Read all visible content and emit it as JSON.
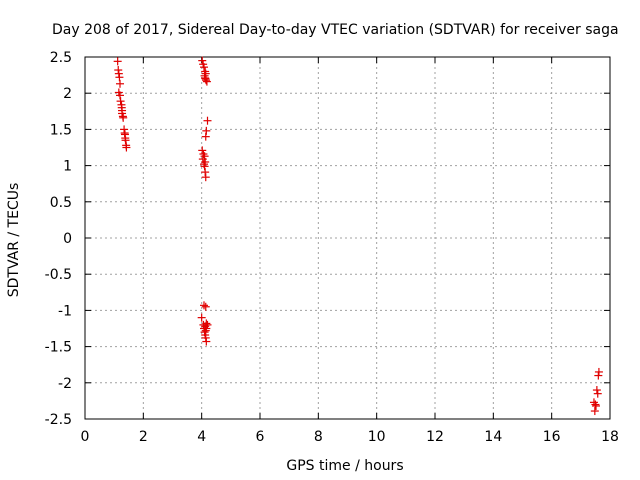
{
  "chart_data": {
    "type": "scatter",
    "title": "Day 208 of 2017, Sidereal Day-to-day VTEC variation (SDTVAR) for receiver saga",
    "xlabel": "GPS time / hours",
    "ylabel": "SDTVAR / TECUs",
    "xlim": [
      0,
      18
    ],
    "ylim": [
      -2.5,
      2.5
    ],
    "xticks": [
      "0",
      "2",
      "4",
      "6",
      "8",
      "10",
      "12",
      "14",
      "16",
      "18"
    ],
    "yticks": [
      "-2.5",
      "-2",
      "-1.5",
      "-1",
      "-0.5",
      "0",
      "0.5",
      "1",
      "1.5",
      "2",
      "2.5"
    ],
    "grid": true,
    "marker": "+",
    "marker_color": "#e00000",
    "series": [
      {
        "name": "SDTVAR",
        "points": [
          [
            1.12,
            2.44
          ],
          [
            1.14,
            2.32
          ],
          [
            1.16,
            2.27
          ],
          [
            1.18,
            2.22
          ],
          [
            1.2,
            2.13
          ],
          [
            1.16,
            2.01
          ],
          [
            1.2,
            1.97
          ],
          [
            1.22,
            1.89
          ],
          [
            1.25,
            1.84
          ],
          [
            1.26,
            1.8
          ],
          [
            1.27,
            1.76
          ],
          [
            1.27,
            1.72
          ],
          [
            1.3,
            1.68
          ],
          [
            1.31,
            1.66
          ],
          [
            1.34,
            1.5
          ],
          [
            1.36,
            1.45
          ],
          [
            1.37,
            1.43
          ],
          [
            1.38,
            1.38
          ],
          [
            1.39,
            1.35
          ],
          [
            1.41,
            1.28
          ],
          [
            1.42,
            1.25
          ],
          [
            4.02,
            2.45
          ],
          [
            4.05,
            2.4
          ],
          [
            4.08,
            2.36
          ],
          [
            4.12,
            2.3
          ],
          [
            4.14,
            2.27
          ],
          [
            4.1,
            2.24
          ],
          [
            4.12,
            2.21
          ],
          [
            4.15,
            2.18
          ],
          [
            4.18,
            2.16
          ],
          [
            4.13,
            2.2
          ],
          [
            4.2,
            1.62
          ],
          [
            4.16,
            1.48
          ],
          [
            4.14,
            1.4
          ],
          [
            4.02,
            1.21
          ],
          [
            4.06,
            1.16
          ],
          [
            4.1,
            1.13
          ],
          [
            4.04,
            1.09
          ],
          [
            4.12,
            1.05
          ],
          [
            4.08,
            1.02
          ],
          [
            4.1,
            0.99
          ],
          [
            4.12,
            0.91
          ],
          [
            4.14,
            0.84
          ],
          [
            4.08,
            -0.93
          ],
          [
            4.14,
            -0.95
          ],
          [
            4.0,
            -1.1
          ],
          [
            4.16,
            -1.18
          ],
          [
            4.06,
            -1.2
          ],
          [
            4.2,
            -1.2
          ],
          [
            4.12,
            -1.22
          ],
          [
            4.08,
            -1.25
          ],
          [
            4.16,
            -1.25
          ],
          [
            4.14,
            -1.28
          ],
          [
            4.1,
            -1.3
          ],
          [
            4.12,
            -1.34
          ],
          [
            4.14,
            -1.38
          ],
          [
            4.16,
            -1.43
          ],
          [
            17.62,
            -1.85
          ],
          [
            17.6,
            -1.9
          ],
          [
            17.55,
            -2.1
          ],
          [
            17.58,
            -2.15
          ],
          [
            17.45,
            -2.27
          ],
          [
            17.5,
            -2.3
          ],
          [
            17.52,
            -2.32
          ],
          [
            17.48,
            -2.39
          ]
        ]
      }
    ]
  }
}
